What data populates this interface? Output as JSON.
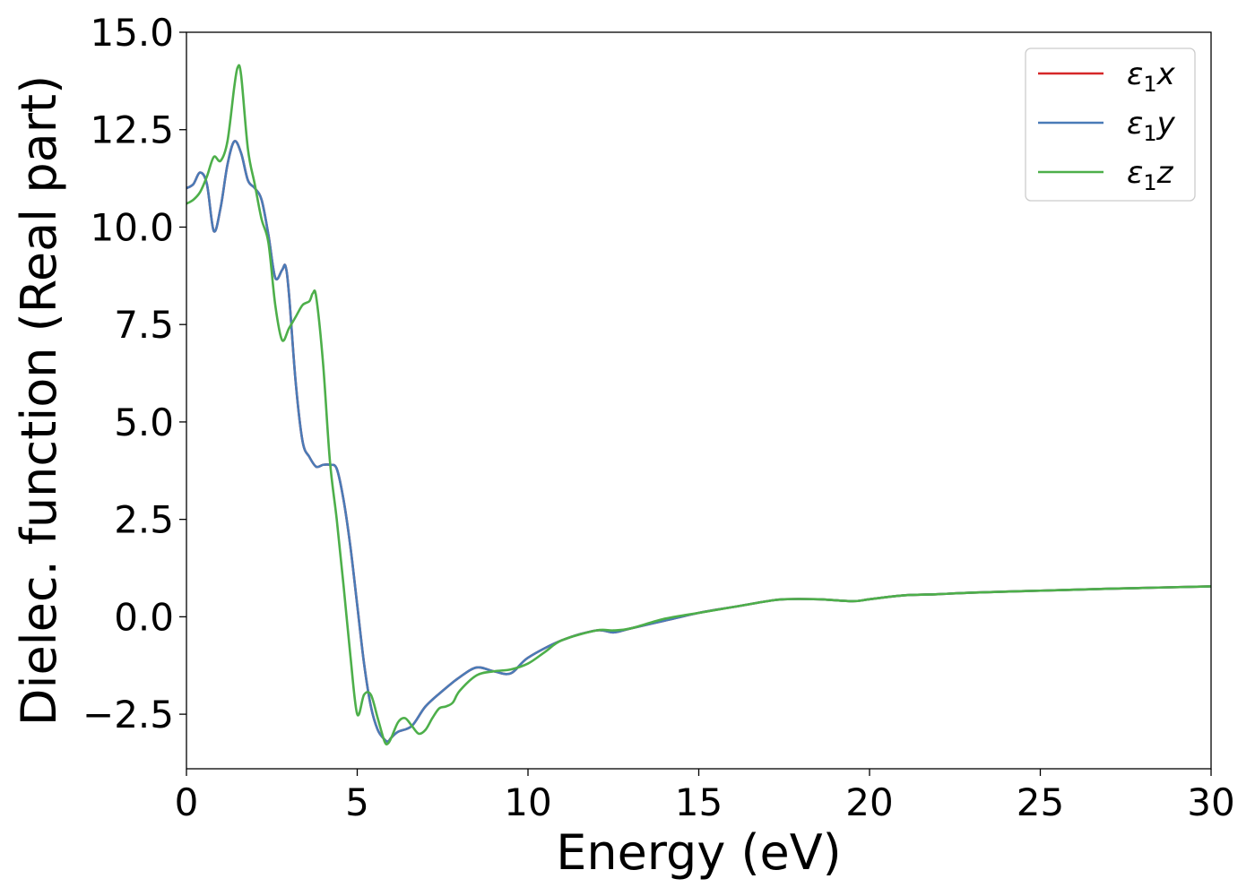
{
  "chart_data": {
    "type": "line",
    "xlabel": "Energy (eV)",
    "ylabel": "Dielec. function (Real part)",
    "xlim": [
      0,
      30
    ],
    "ylim": [
      -3.9,
      15.0
    ],
    "xticks": [
      0,
      5,
      10,
      15,
      20,
      25,
      30
    ],
    "xtick_labels": [
      "0",
      "5",
      "10",
      "15",
      "20",
      "25",
      "30"
    ],
    "yticks": [
      -2.5,
      0.0,
      2.5,
      5.0,
      7.5,
      10.0,
      12.5,
      15.0
    ],
    "ytick_labels": [
      "−2.5",
      "0.0",
      "2.5",
      "5.0",
      "7.5",
      "10.0",
      "12.5",
      "15.0"
    ],
    "grid": false,
    "legend_position": "top-right",
    "series": [
      {
        "name": "ε₁x",
        "legend_base": "ε",
        "legend_sub": "1",
        "legend_var": "x",
        "color": "#d62728",
        "x": [
          0.0,
          0.2,
          0.4,
          0.6,
          0.8,
          1.0,
          1.2,
          1.4,
          1.6,
          1.8,
          2.0,
          2.2,
          2.4,
          2.6,
          2.8,
          2.9,
          3.0,
          3.2,
          3.4,
          3.6,
          3.8,
          4.0,
          4.2,
          4.4,
          4.6,
          4.8,
          5.0,
          5.2,
          5.4,
          5.6,
          5.8,
          5.9,
          6.0,
          6.2,
          6.6,
          7.0,
          7.5,
          8.0,
          8.5,
          9.0,
          9.5,
          10.0,
          11.0,
          12.0,
          12.5,
          13.0,
          14.0,
          15.0,
          16.0,
          17.0,
          17.5,
          18.5,
          19.5,
          20.0,
          21.0,
          22.0,
          23.0,
          25.0,
          27.0,
          30.0
        ],
        "y": [
          11.0,
          11.1,
          11.4,
          11.1,
          9.9,
          10.5,
          11.6,
          12.2,
          11.9,
          11.2,
          11.0,
          10.7,
          9.8,
          8.7,
          8.9,
          9.0,
          8.3,
          6.0,
          4.5,
          4.1,
          3.85,
          3.9,
          3.9,
          3.8,
          3.0,
          1.8,
          0.3,
          -1.2,
          -2.3,
          -2.9,
          -3.15,
          -3.2,
          -3.1,
          -2.95,
          -2.8,
          -2.3,
          -1.9,
          -1.55,
          -1.3,
          -1.4,
          -1.45,
          -1.05,
          -0.6,
          -0.35,
          -0.4,
          -0.3,
          -0.1,
          0.1,
          0.25,
          0.4,
          0.45,
          0.45,
          0.4,
          0.45,
          0.55,
          0.58,
          0.62,
          0.67,
          0.72,
          0.78
        ]
      },
      {
        "name": "ε₁y",
        "legend_base": "ε",
        "legend_sub": "1",
        "legend_var": "y",
        "color": "#4a7bb7",
        "x": [
          0.0,
          0.2,
          0.4,
          0.6,
          0.8,
          1.0,
          1.2,
          1.4,
          1.6,
          1.8,
          2.0,
          2.2,
          2.4,
          2.6,
          2.8,
          2.9,
          3.0,
          3.2,
          3.4,
          3.6,
          3.8,
          4.0,
          4.2,
          4.4,
          4.6,
          4.8,
          5.0,
          5.2,
          5.4,
          5.6,
          5.8,
          5.9,
          6.0,
          6.2,
          6.6,
          7.0,
          7.5,
          8.0,
          8.5,
          9.0,
          9.5,
          10.0,
          11.0,
          12.0,
          12.5,
          13.0,
          14.0,
          15.0,
          16.0,
          17.0,
          17.5,
          18.5,
          19.5,
          20.0,
          21.0,
          22.0,
          23.0,
          25.0,
          27.0,
          30.0
        ],
        "y": [
          11.0,
          11.1,
          11.4,
          11.1,
          9.9,
          10.5,
          11.6,
          12.2,
          11.9,
          11.2,
          11.0,
          10.7,
          9.8,
          8.7,
          8.9,
          9.0,
          8.3,
          6.0,
          4.5,
          4.1,
          3.85,
          3.9,
          3.9,
          3.8,
          3.0,
          1.8,
          0.3,
          -1.2,
          -2.3,
          -2.9,
          -3.15,
          -3.2,
          -3.1,
          -2.95,
          -2.8,
          -2.3,
          -1.9,
          -1.55,
          -1.3,
          -1.4,
          -1.45,
          -1.05,
          -0.6,
          -0.35,
          -0.4,
          -0.3,
          -0.1,
          0.1,
          0.25,
          0.4,
          0.45,
          0.45,
          0.4,
          0.45,
          0.55,
          0.58,
          0.62,
          0.67,
          0.72,
          0.78
        ]
      },
      {
        "name": "ε₁z",
        "legend_base": "ε",
        "legend_sub": "1",
        "legend_var": "z",
        "color": "#4daf4a",
        "x": [
          0.0,
          0.2,
          0.4,
          0.6,
          0.8,
          1.0,
          1.2,
          1.4,
          1.5,
          1.6,
          1.8,
          2.0,
          2.2,
          2.4,
          2.6,
          2.8,
          3.0,
          3.2,
          3.4,
          3.6,
          3.7,
          3.8,
          4.0,
          4.2,
          4.4,
          4.6,
          4.8,
          5.0,
          5.2,
          5.4,
          5.6,
          5.8,
          5.9,
          6.0,
          6.2,
          6.4,
          6.6,
          6.8,
          7.0,
          7.2,
          7.4,
          7.6,
          7.8,
          8.0,
          8.5,
          9.0,
          9.5,
          10.0,
          10.5,
          11.0,
          12.0,
          12.5,
          13.0,
          14.0,
          15.0,
          16.0,
          17.0,
          17.5,
          18.5,
          19.5,
          20.0,
          21.0,
          22.0,
          23.0,
          25.0,
          27.0,
          30.0
        ],
        "y": [
          10.6,
          10.7,
          10.9,
          11.3,
          11.8,
          11.7,
          12.2,
          13.6,
          14.1,
          13.9,
          12.0,
          11.1,
          10.2,
          9.6,
          8.0,
          7.1,
          7.4,
          7.7,
          8.0,
          8.1,
          8.3,
          8.2,
          6.5,
          4.0,
          2.5,
          0.8,
          -1.0,
          -2.5,
          -2.0,
          -2.0,
          -2.6,
          -3.2,
          -3.25,
          -3.1,
          -2.7,
          -2.6,
          -2.8,
          -3.0,
          -2.9,
          -2.6,
          -2.35,
          -2.3,
          -2.2,
          -1.9,
          -1.5,
          -1.4,
          -1.35,
          -1.2,
          -0.9,
          -0.6,
          -0.35,
          -0.35,
          -0.3,
          -0.05,
          0.1,
          0.25,
          0.4,
          0.45,
          0.45,
          0.4,
          0.45,
          0.55,
          0.58,
          0.62,
          0.67,
          0.72,
          0.78
        ]
      }
    ]
  }
}
